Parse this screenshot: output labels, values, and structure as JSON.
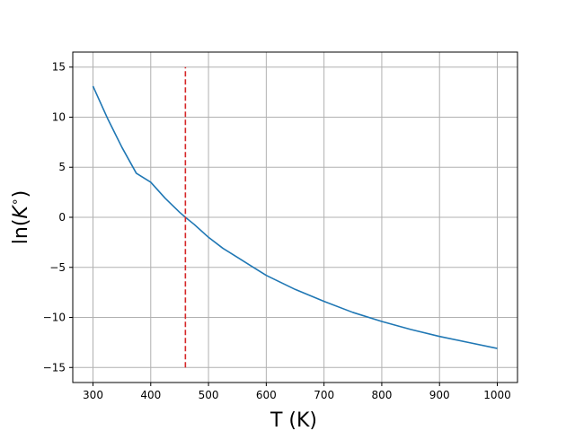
{
  "chart_data": {
    "type": "line",
    "title": "",
    "xlabel": "T (K)",
    "ylabel_parts": {
      "prefix": "ln(",
      "symbol": "K",
      "superscript": "∘",
      "suffix": ")"
    },
    "xlim": [
      265,
      1035
    ],
    "ylim": [
      -16.5,
      16.5
    ],
    "x_ticks": [
      300,
      400,
      500,
      600,
      700,
      800,
      900,
      1000
    ],
    "y_ticks": [
      -15,
      -10,
      -5,
      0,
      5,
      10,
      15
    ],
    "grid": true,
    "series": [
      {
        "color": "#1f77b4",
        "x": [
          300,
          325,
          350,
          375,
          400,
          425,
          450,
          460,
          475,
          500,
          525,
          550,
          575,
          600,
          650,
          700,
          750,
          800,
          850,
          900,
          950,
          1000
        ],
        "y": [
          13.1,
          9.9,
          7.0,
          4.4,
          3.5,
          1.9,
          0.5,
          0.0,
          -0.7,
          -2.0,
          -3.1,
          -4.0,
          -4.9,
          -5.8,
          -7.2,
          -8.4,
          -9.5,
          -10.4,
          -11.2,
          -11.9,
          -12.5,
          -13.1
        ]
      }
    ],
    "reference_line": {
      "x": 460,
      "y_range": [
        -15,
        15
      ],
      "color": "#d62728",
      "style": "dashed"
    }
  }
}
